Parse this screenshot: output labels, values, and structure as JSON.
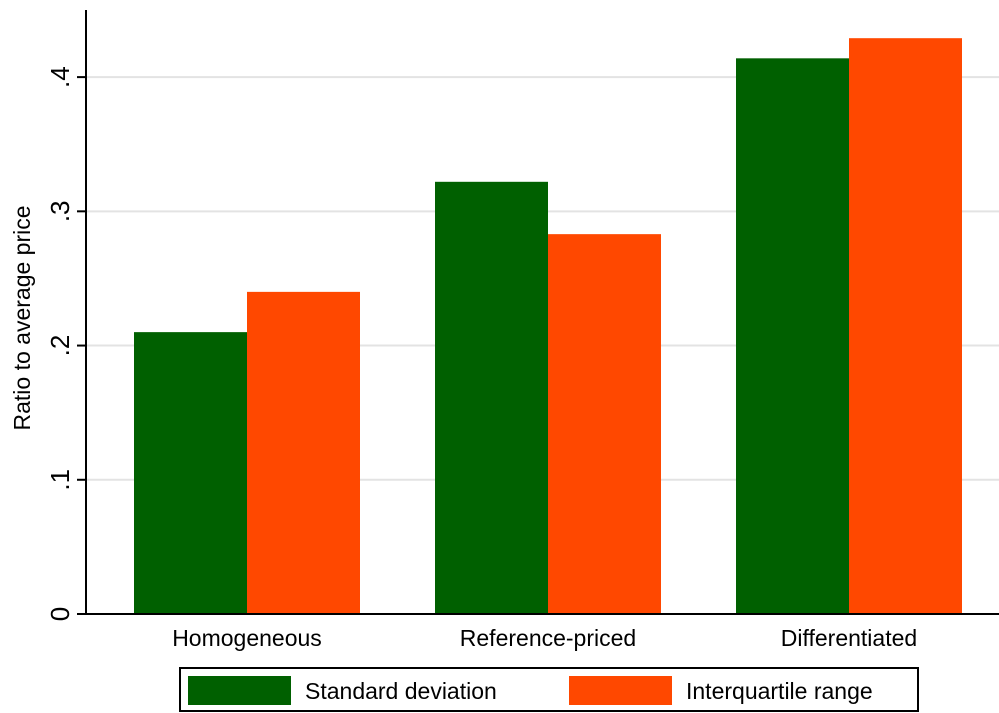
{
  "chart_data": {
    "type": "bar",
    "categories": [
      "Homogeneous",
      "Reference-priced",
      "Differentiated"
    ],
    "series": [
      {
        "name": "Standard deviation",
        "values": [
          0.21,
          0.322,
          0.414
        ],
        "color": "#006000"
      },
      {
        "name": "Interquartile range",
        "values": [
          0.24,
          0.283,
          0.429
        ],
        "color": "#ff4800"
      }
    ],
    "title": "",
    "xlabel": "",
    "ylabel": "Ratio to average price",
    "ylim": [
      0,
      0.45
    ],
    "yticks": [
      0,
      0.1,
      0.2,
      0.3,
      0.4
    ],
    "ytick_labels": [
      "0",
      ".1",
      ".2",
      ".3",
      ".4"
    ],
    "grid": true,
    "legend_position": "bottom"
  }
}
